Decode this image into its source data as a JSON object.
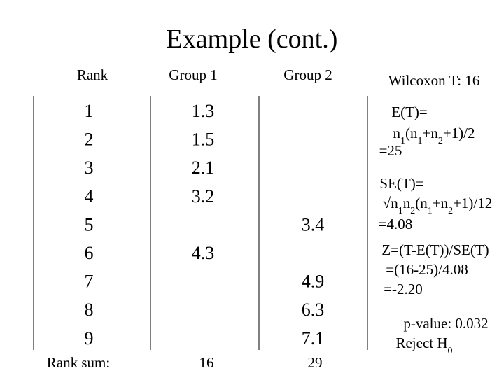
{
  "title": "Example (cont.)",
  "table": {
    "headers": {
      "rank": "Rank",
      "group1": "Group 1",
      "group2": "Group 2"
    },
    "rows": [
      {
        "rank": 1,
        "group1": 1.3
      },
      {
        "rank": 2,
        "group1": 1.5
      },
      {
        "rank": 3,
        "group1": 2.1
      },
      {
        "rank": 4,
        "group1": 3.2
      },
      {
        "rank": 5,
        "group2": 3.4
      },
      {
        "rank": 6,
        "group1": 4.3
      },
      {
        "rank": 7,
        "group2": 4.9
      },
      {
        "rank": 8,
        "group2": 6.3
      },
      {
        "rank": 9,
        "group2": 7.1
      }
    ],
    "rank_sum": {
      "label": "Rank sum:",
      "group1": 16,
      "group2": 29
    }
  },
  "stats": [
    [
      "Wilcoxon T: 16"
    ],
    [
      "E(T)="
    ],
    [
      "n",
      "1",
      "(n",
      "1",
      "+n",
      "2",
      "+1)/2"
    ],
    [
      "=25"
    ],
    [
      "SE(T)="
    ],
    [
      "√n",
      "1",
      "n",
      "2",
      "(n",
      "1",
      "+n",
      "2",
      "+1)/12"
    ],
    [
      "=4.08"
    ],
    [
      "Z=(T-E(T))/SE(T)"
    ],
    [
      "=(16-25)/4.08"
    ],
    [
      "=-2.20"
    ],
    [
      "p-value: 0.032"
    ],
    [
      "Reject H",
      "0"
    ]
  ]
}
